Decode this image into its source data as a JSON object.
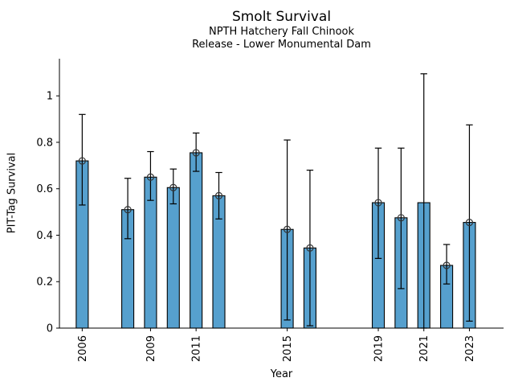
{
  "figure": {
    "title": "Smolt Survival",
    "subtitle1": "NPTH Hatchery Fall Chinook",
    "subtitle2": "Release - Lower Monumental Dam"
  },
  "chart_data": {
    "type": "bar",
    "title": "Smolt Survival",
    "subtitle": [
      "NPTH Hatchery Fall Chinook",
      "Release - Lower Monumental Dam"
    ],
    "xlabel": "Year",
    "ylabel": "PIT-Tag Survival",
    "xlim": [
      2005.0,
      2024.5
    ],
    "ylim": [
      0,
      1.16
    ],
    "yticks": [
      0,
      0.2,
      0.4,
      0.6,
      0.8,
      1
    ],
    "ytick_labels": [
      "0",
      "0.2",
      "0.4",
      "0.6",
      "0.8",
      "1"
    ],
    "xticks": [
      2006,
      2009,
      2011,
      2015,
      2019,
      2021,
      2023
    ],
    "xtick_labels": [
      "2006",
      "2009",
      "2011",
      "2015",
      "2019",
      "2021",
      "2023"
    ],
    "grid": false,
    "legend": "none",
    "bar_color": "#56a0ce",
    "bar_edge_color": "#000000",
    "error_color": "#000000",
    "marker_style": "open-circle",
    "marker_edge_color": "#333333",
    "series": [
      {
        "name": "PIT-Tag Survival",
        "points": [
          {
            "year": 2006,
            "value": 0.72,
            "err_low": 0.53,
            "err_high": 0.92,
            "marker": true
          },
          {
            "year": 2008,
            "value": 0.51,
            "err_low": 0.385,
            "err_high": 0.645,
            "marker": true
          },
          {
            "year": 2009,
            "value": 0.65,
            "err_low": 0.55,
            "err_high": 0.76,
            "marker": true
          },
          {
            "year": 2010,
            "value": 0.605,
            "err_low": 0.535,
            "err_high": 0.685,
            "marker": true
          },
          {
            "year": 2011,
            "value": 0.755,
            "err_low": 0.675,
            "err_high": 0.84,
            "marker": true
          },
          {
            "year": 2012,
            "value": 0.57,
            "err_low": 0.47,
            "err_high": 0.67,
            "marker": true
          },
          {
            "year": 2015,
            "value": 0.425,
            "err_low": 0.035,
            "err_high": 0.81,
            "marker": true
          },
          {
            "year": 2016,
            "value": 0.345,
            "err_low": 0.01,
            "err_high": 0.68,
            "marker": true
          },
          {
            "year": 2019,
            "value": 0.54,
            "err_low": 0.3,
            "err_high": 0.775,
            "marker": true
          },
          {
            "year": 2020,
            "value": 0.475,
            "err_low": 0.17,
            "err_high": 0.775,
            "marker": true
          },
          {
            "year": 2021,
            "value": 0.54,
            "err_low": 0.0,
            "err_high": 1.095,
            "marker": false
          },
          {
            "year": 2022,
            "value": 0.27,
            "err_low": 0.19,
            "err_high": 0.36,
            "marker": true
          },
          {
            "year": 2023,
            "value": 0.455,
            "err_low": 0.03,
            "err_high": 0.875,
            "marker": true
          }
        ]
      }
    ]
  }
}
